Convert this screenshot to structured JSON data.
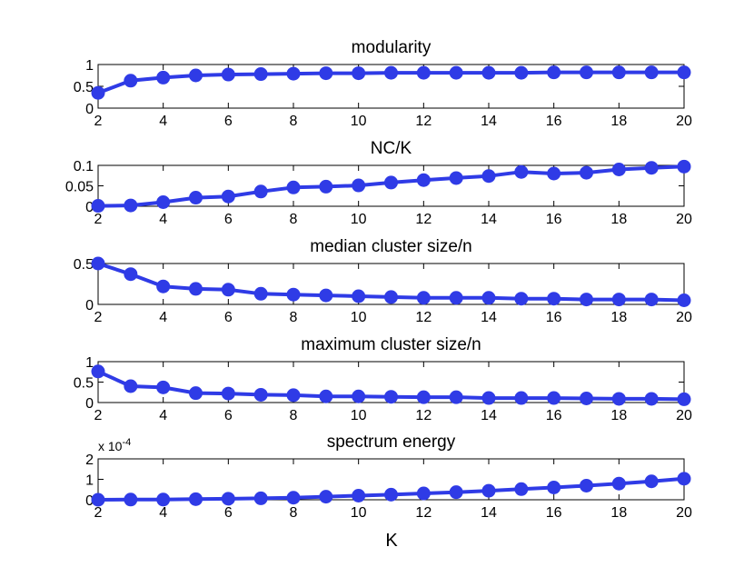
{
  "figure": {
    "xlabel": "K"
  },
  "chart_data": [
    {
      "type": "line",
      "title": "modularity",
      "x": [
        2,
        3,
        4,
        5,
        6,
        7,
        8,
        9,
        10,
        11,
        12,
        13,
        14,
        15,
        16,
        17,
        18,
        19,
        20
      ],
      "values": [
        0.35,
        0.63,
        0.7,
        0.75,
        0.77,
        0.78,
        0.79,
        0.8,
        0.8,
        0.81,
        0.81,
        0.81,
        0.81,
        0.81,
        0.82,
        0.82,
        0.82,
        0.82,
        0.82
      ],
      "xlim": [
        2,
        20
      ],
      "ylim": [
        0,
        1
      ],
      "xticks": [
        2,
        4,
        6,
        8,
        10,
        12,
        14,
        16,
        18,
        20
      ],
      "yticks": [
        0,
        0.5,
        1
      ],
      "ytick_labels": [
        "0",
        "0.5",
        "1"
      ],
      "xtick_labels": [
        "2",
        "4",
        "6",
        "8",
        "10",
        "12",
        "14",
        "16",
        "18",
        "20"
      ],
      "exponent_label": "",
      "color": "#2f3be6"
    },
    {
      "type": "line",
      "title": "NC/K",
      "x": [
        2,
        3,
        4,
        5,
        6,
        7,
        8,
        9,
        10,
        11,
        12,
        13,
        14,
        15,
        16,
        17,
        18,
        19,
        20
      ],
      "values": [
        0.001,
        0.002,
        0.01,
        0.021,
        0.024,
        0.036,
        0.046,
        0.048,
        0.051,
        0.058,
        0.064,
        0.069,
        0.074,
        0.084,
        0.08,
        0.082,
        0.09,
        0.094,
        0.097
      ],
      "xlim": [
        2,
        20
      ],
      "ylim": [
        0,
        0.1
      ],
      "xticks": [
        2,
        4,
        6,
        8,
        10,
        12,
        14,
        16,
        18,
        20
      ],
      "yticks": [
        0,
        0.05,
        0.1
      ],
      "ytick_labels": [
        "0",
        "0.05",
        "0.1"
      ],
      "xtick_labels": [
        "2",
        "4",
        "6",
        "8",
        "10",
        "12",
        "14",
        "16",
        "18",
        "20"
      ],
      "exponent_label": "",
      "color": "#2f3be6"
    },
    {
      "type": "line",
      "title": "median cluster size/n",
      "x": [
        2,
        3,
        4,
        5,
        6,
        7,
        8,
        9,
        10,
        11,
        12,
        13,
        14,
        15,
        16,
        17,
        18,
        19,
        20
      ],
      "values": [
        0.5,
        0.37,
        0.22,
        0.19,
        0.18,
        0.13,
        0.12,
        0.11,
        0.1,
        0.09,
        0.08,
        0.08,
        0.08,
        0.07,
        0.07,
        0.06,
        0.06,
        0.06,
        0.05
      ],
      "xlim": [
        2,
        20
      ],
      "ylim": [
        0,
        0.5
      ],
      "xticks": [
        2,
        4,
        6,
        8,
        10,
        12,
        14,
        16,
        18,
        20
      ],
      "yticks": [
        0,
        0.5
      ],
      "ytick_labels": [
        "0",
        "0.5"
      ],
      "xtick_labels": [
        "2",
        "4",
        "6",
        "8",
        "10",
        "12",
        "14",
        "16",
        "18",
        "20"
      ],
      "exponent_label": "",
      "color": "#2f3be6"
    },
    {
      "type": "line",
      "title": "maximum cluster size/n",
      "x": [
        2,
        3,
        4,
        5,
        6,
        7,
        8,
        9,
        10,
        11,
        12,
        13,
        14,
        15,
        16,
        17,
        18,
        19,
        20
      ],
      "values": [
        0.76,
        0.4,
        0.37,
        0.23,
        0.22,
        0.19,
        0.18,
        0.15,
        0.15,
        0.14,
        0.13,
        0.13,
        0.11,
        0.11,
        0.11,
        0.1,
        0.09,
        0.09,
        0.08
      ],
      "xlim": [
        2,
        20
      ],
      "ylim": [
        0,
        1
      ],
      "xticks": [
        2,
        4,
        6,
        8,
        10,
        12,
        14,
        16,
        18,
        20
      ],
      "yticks": [
        0,
        0.5,
        1
      ],
      "ytick_labels": [
        "0",
        "0.5",
        "1"
      ],
      "xtick_labels": [
        "2",
        "4",
        "6",
        "8",
        "10",
        "12",
        "14",
        "16",
        "18",
        "20"
      ],
      "exponent_label": "",
      "color": "#2f3be6"
    },
    {
      "type": "line",
      "title": "spectrum energy",
      "x": [
        2,
        3,
        4,
        5,
        6,
        7,
        8,
        9,
        10,
        11,
        12,
        13,
        14,
        15,
        16,
        17,
        18,
        19,
        20
      ],
      "values": [
        0.0,
        0.01,
        0.01,
        0.03,
        0.05,
        0.07,
        0.1,
        0.15,
        0.2,
        0.25,
        0.31,
        0.37,
        0.44,
        0.52,
        0.6,
        0.69,
        0.79,
        0.9,
        1.03
      ],
      "xlim": [
        2,
        20
      ],
      "ylim": [
        0,
        2
      ],
      "xticks": [
        2,
        4,
        6,
        8,
        10,
        12,
        14,
        16,
        18,
        20
      ],
      "yticks": [
        0,
        1,
        2
      ],
      "ytick_labels": [
        "0",
        "1",
        "2"
      ],
      "xtick_labels": [
        "2",
        "4",
        "6",
        "8",
        "10",
        "12",
        "14",
        "16",
        "18",
        "20"
      ],
      "exponent_label": "x 10",
      "exponent_power": "-4",
      "color": "#2f3be6"
    }
  ]
}
